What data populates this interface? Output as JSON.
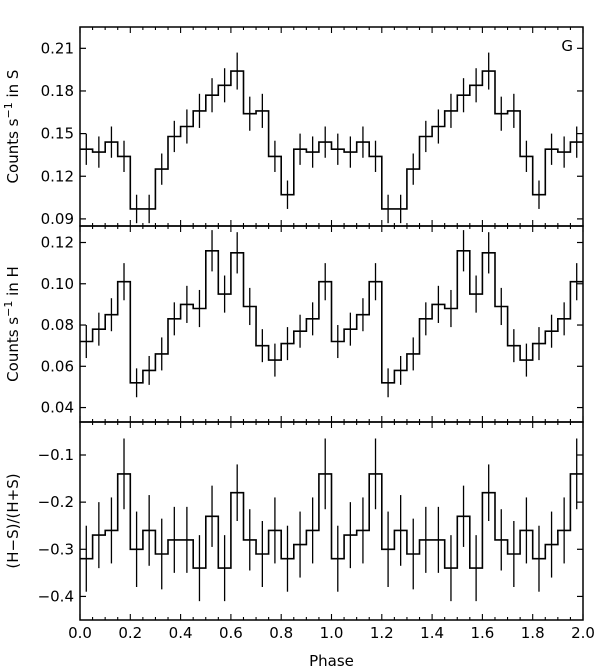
{
  "chart_data": [
    {
      "type": "line",
      "style": "step-with-error-bars",
      "panel_label": "G",
      "ylabel_base": "Counts s",
      "ylabel_exp": "−1",
      "ylabel_tail": " in S",
      "ylim": [
        0.085,
        0.225
      ],
      "yticks": [
        0.09,
        0.12,
        0.15,
        0.18,
        0.21
      ],
      "ytick_labels": [
        "0.09",
        "0.12",
        "0.15",
        "0.18",
        "0.21"
      ],
      "xlim": [
        0,
        2
      ],
      "x": [
        0.0,
        0.05,
        0.1,
        0.15,
        0.2,
        0.25,
        0.3,
        0.35,
        0.4,
        0.45,
        0.5,
        0.55,
        0.6,
        0.65,
        0.7,
        0.75,
        0.8,
        0.85,
        0.9,
        0.95
      ],
      "values": [
        0.139,
        0.137,
        0.144,
        0.134,
        0.097,
        0.097,
        0.125,
        0.148,
        0.155,
        0.166,
        0.177,
        0.184,
        0.194,
        0.164,
        0.166,
        0.134,
        0.107,
        0.139,
        0.137,
        0.144
      ],
      "errors": [
        0.011,
        0.011,
        0.011,
        0.011,
        0.01,
        0.01,
        0.011,
        0.011,
        0.012,
        0.012,
        0.012,
        0.012,
        0.013,
        0.012,
        0.012,
        0.011,
        0.01,
        0.011,
        0.011,
        0.011
      ]
    },
    {
      "type": "line",
      "style": "step-with-error-bars",
      "ylabel_base": "Counts s",
      "ylabel_exp": "−1",
      "ylabel_tail": " in H",
      "ylim": [
        0.033,
        0.128
      ],
      "yticks": [
        0.04,
        0.06,
        0.08,
        0.1,
        0.12
      ],
      "ytick_labels": [
        "0.04",
        "0.06",
        "0.08",
        "0.10",
        "0.12"
      ],
      "xlim": [
        0,
        2
      ],
      "x": [
        0.0,
        0.05,
        0.1,
        0.15,
        0.2,
        0.25,
        0.3,
        0.35,
        0.4,
        0.45,
        0.5,
        0.55,
        0.6,
        0.65,
        0.7,
        0.75,
        0.8,
        0.85,
        0.9,
        0.95
      ],
      "values": [
        0.072,
        0.078,
        0.085,
        0.101,
        0.052,
        0.058,
        0.066,
        0.083,
        0.09,
        0.088,
        0.116,
        0.095,
        0.115,
        0.089,
        0.07,
        0.063,
        0.071,
        0.077,
        0.083,
        0.101
      ],
      "errors": [
        0.008,
        0.008,
        0.008,
        0.009,
        0.007,
        0.007,
        0.008,
        0.008,
        0.009,
        0.009,
        0.01,
        0.009,
        0.01,
        0.009,
        0.008,
        0.008,
        0.008,
        0.008,
        0.008,
        0.009
      ]
    },
    {
      "type": "line",
      "style": "step-with-error-bars",
      "ylabel": "(H−S)/(H+S)",
      "xlabel": "Phase",
      "ylim": [
        -0.45,
        -0.03
      ],
      "yticks": [
        -0.4,
        -0.3,
        -0.2,
        -0.1
      ],
      "ytick_labels": [
        "−0.4",
        "−0.3",
        "−0.2",
        "−0.1"
      ],
      "xlim": [
        0,
        2
      ],
      "xticks": [
        0.0,
        0.2,
        0.4,
        0.6,
        0.8,
        1.0,
        1.2,
        1.4,
        1.6,
        1.8,
        2.0
      ],
      "xtick_labels": [
        "0.0",
        "0.2",
        "0.4",
        "0.6",
        "0.8",
        "1.0",
        "1.2",
        "1.4",
        "1.6",
        "1.8",
        "2.0"
      ],
      "x": [
        0.0,
        0.05,
        0.1,
        0.15,
        0.2,
        0.25,
        0.3,
        0.35,
        0.4,
        0.45,
        0.5,
        0.55,
        0.6,
        0.65,
        0.7,
        0.75,
        0.8,
        0.85,
        0.9,
        0.95
      ],
      "values": [
        -0.32,
        -0.27,
        -0.26,
        -0.14,
        -0.3,
        -0.26,
        -0.31,
        -0.28,
        -0.28,
        -0.34,
        -0.23,
        -0.34,
        -0.18,
        -0.28,
        -0.31,
        -0.26,
        -0.32,
        -0.29,
        -0.26,
        -0.14
      ],
      "errors": [
        0.07,
        0.07,
        0.07,
        0.075,
        0.08,
        0.075,
        0.075,
        0.07,
        0.07,
        0.07,
        0.065,
        0.07,
        0.06,
        0.065,
        0.07,
        0.07,
        0.07,
        0.07,
        0.07,
        0.075
      ]
    }
  ]
}
